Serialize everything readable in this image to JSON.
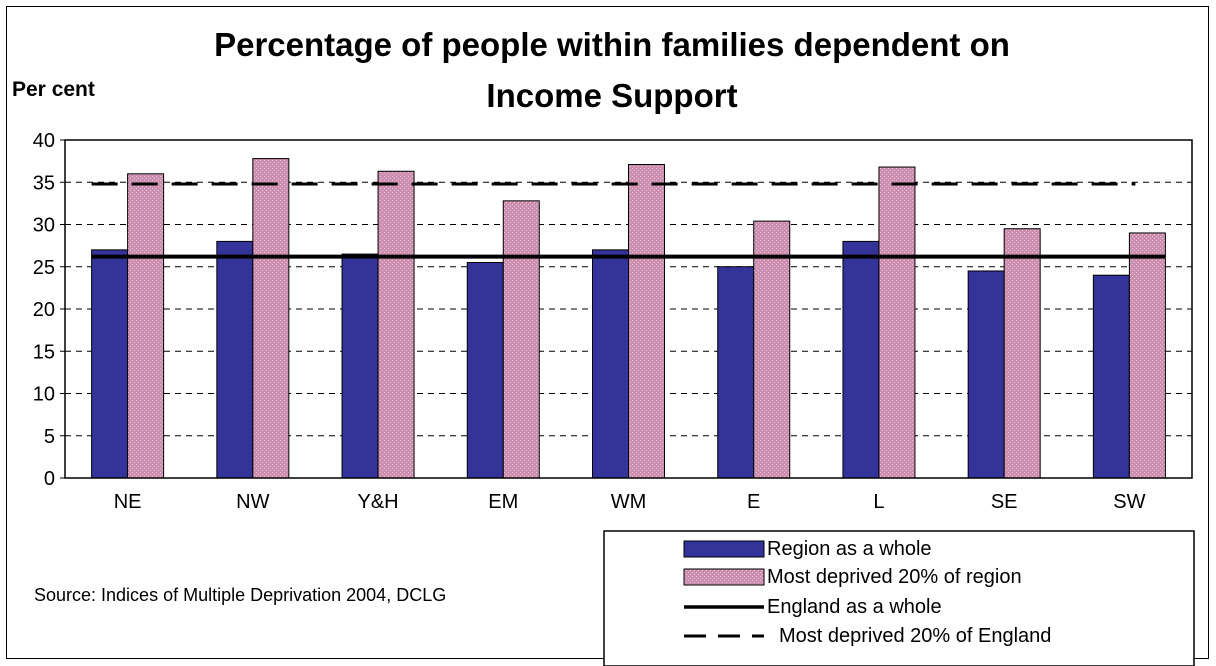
{
  "chart_data": {
    "type": "bar",
    "title_line1": "Percentage of people within families dependent on",
    "title_line2": "Income Support",
    "ylabel": "Per cent",
    "xlabel": "",
    "ylim": [
      0,
      40
    ],
    "yticks": [
      0,
      5,
      10,
      15,
      20,
      25,
      30,
      35,
      40
    ],
    "grid": "horizontal dashed",
    "categories": [
      "NE",
      "NW",
      "Y&H",
      "EM",
      "WM",
      "E",
      "L",
      "SE",
      "SW"
    ],
    "series": [
      {
        "name": "Region as a whole",
        "values": [
          27,
          28,
          26.5,
          25.5,
          27,
          25,
          28,
          24.5,
          24
        ],
        "color": "#333399"
      },
      {
        "name": "Most deprived 20% of region",
        "values": [
          36,
          37.8,
          36.3,
          32.8,
          37.1,
          30.4,
          36.8,
          29.5,
          29
        ],
        "color": "#cc8fb0"
      }
    ],
    "reference_lines": [
      {
        "name": "England as a whole",
        "value": 26.2,
        "style": "solid",
        "color": "#000000"
      },
      {
        "name": "Most deprived 20% of England",
        "value": 34.8,
        "style": "dashed",
        "color": "#000000"
      }
    ],
    "legend_position": "bottom-right",
    "source": "Source: Indices of Multiple Deprivation 2004, DCLG"
  }
}
